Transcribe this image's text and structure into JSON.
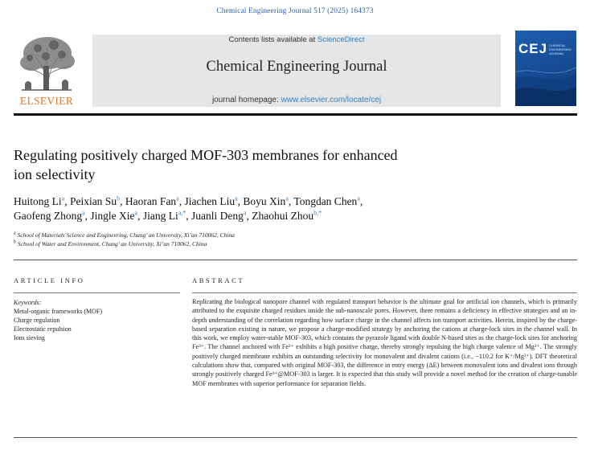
{
  "citation": "Chemical Engineering Journal 517 (2025) 164373",
  "publisher": {
    "name": "ELSEVIER",
    "logo_icon": "elsevier-tree-logo"
  },
  "banner": {
    "contents_prefix": "Contents lists available at ",
    "contents_link": "ScienceDirect",
    "journal_name": "Chemical Engineering Journal",
    "homepage_prefix": "journal homepage: ",
    "homepage_link": "www.elsevier.com/locate/cej"
  },
  "cover": {
    "acronym": "CEJ",
    "subtitle": "CHEMICAL ENGINEERING JOURNAL"
  },
  "article": {
    "title_line1": "Regulating positively charged MOF-303 membranes for enhanced",
    "title_line2": "ion selectivity"
  },
  "authors": [
    {
      "name": "Huitong Li",
      "aff": "a",
      "sep": ", "
    },
    {
      "name": "Peixian Su",
      "aff": "b",
      "sep": ", "
    },
    {
      "name": "Haoran Fan",
      "aff": "a",
      "sep": ", "
    },
    {
      "name": "Jiachen Liu",
      "aff": "a",
      "sep": ", "
    },
    {
      "name": "Boyu Xin",
      "aff": "a",
      "sep": ", "
    },
    {
      "name": "Tongdan Chen",
      "aff": "a",
      "sep": ","
    },
    {
      "name": "Gaofeng Zhong",
      "aff": "a",
      "sep": ", "
    },
    {
      "name": "Jingle Xie",
      "aff": "a",
      "sep": ", "
    },
    {
      "name": "Jiang Li",
      "aff": "a,*",
      "sep": ", "
    },
    {
      "name": "Juanli Deng",
      "aff": "a",
      "sep": ", "
    },
    {
      "name": "Zhaohui Zhou",
      "aff": "b,*",
      "sep": ""
    }
  ],
  "affiliations": [
    {
      "mark": "a",
      "text": "School of Materials Science and Engineering, Chang’ an University, Xi’an 710062, China"
    },
    {
      "mark": "b",
      "text": "School of Water and Environment, Chang’ an University, Xi’an 710062, China"
    }
  ],
  "article_info": {
    "heading": "ARTICLE INFO",
    "keywords_label": "Keywords:",
    "keywords": [
      "Metal-organic frameworks (MOF)",
      "Charge regulation",
      "Electrostatic repulsion",
      "Ions sieving"
    ]
  },
  "abstract": {
    "heading": "ABSTRACT",
    "text": "Replicating the biological nanopore channel with regulated transport behavior is the ultimate goal for artificial ion channels, which is primarily attributed to the exquisite charged residues inside the sub-nanoscale pores. However, there remains a deficiency in effective strategies and an in-depth understanding of the correlation regarding how surface charge in the channel affects ion transport activities. Herein, inspired by the charge-based separation existing in nature, we propose a charge-modified strategy by anchoring the cations at charge-lock sites in the channel wall. In this work, we employ water-stable MOF-303, which contains the pyrazole ligand with double N-based sites as the charge-lock sites for anchoring Fe³⁺. The channel anchored with Fe³⁺ exhibits a high positive charge, thereby strongly repulsing the high charge valence of Mg²⁺. The strongly positively charged membrane exhibits an outstanding selectivity for monovalent and divalent cations (i.e., −110.2 for K⁺/Mg²⁺). DFT theoretical calculations show that, compared with original MOF-303, the difference in entry energy (ΔE) between monovalent ions and divalent ions through strongly positively charged Fe³⁺@MOF-303 is larger. It is expected that this study will provide a novel method for the creation of charge-tunable MOF membranes with superior performance for separation fields."
  },
  "colors": {
    "link": "#2f7fbf",
    "publisher_orange": "#e87722",
    "banner_grey": "#e6e6e6",
    "cover_blue": "#1d5fb0"
  }
}
